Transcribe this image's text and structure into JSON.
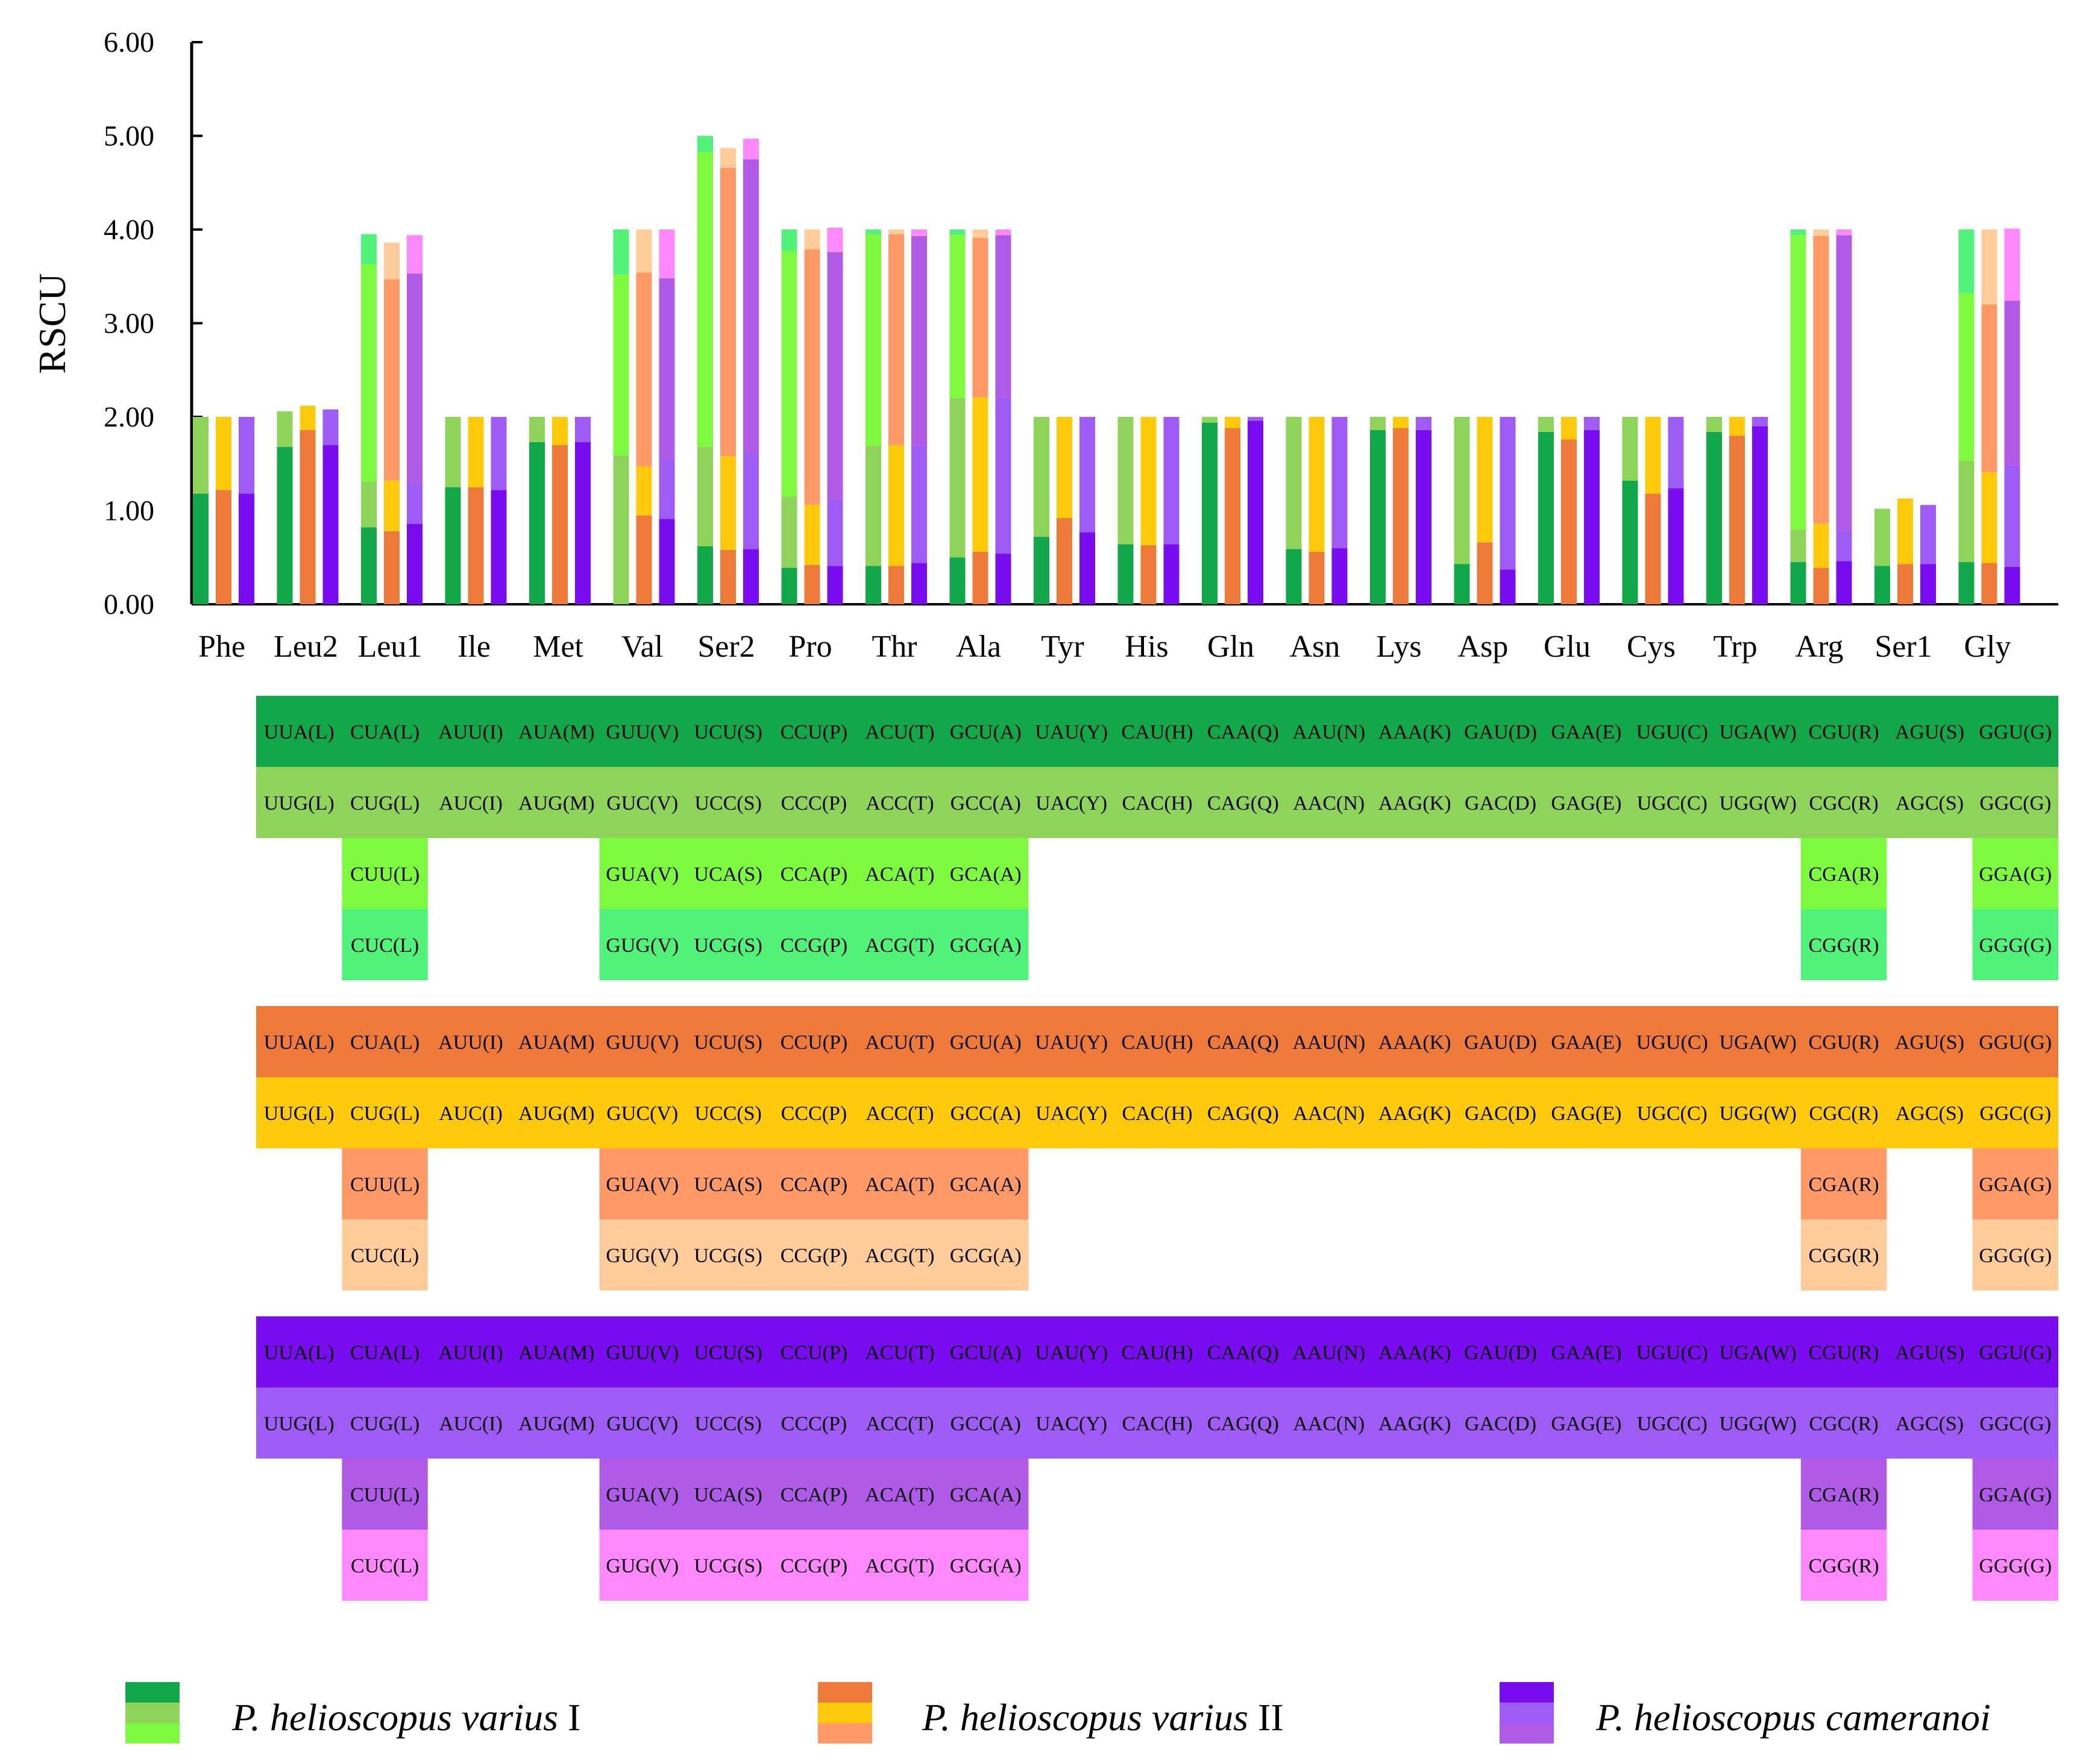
{
  "chart_data": {
    "type": "bar",
    "stacked": true,
    "ylabel": "RSCU",
    "ylim": [
      0,
      6
    ],
    "yticks": [
      "0.00",
      "1.00",
      "2.00",
      "3.00",
      "4.00",
      "5.00",
      "6.00"
    ],
    "categories": [
      "Phe",
      "Leu2",
      "Leu1",
      "Ile",
      "Met",
      "Val",
      "Ser2",
      "Pro",
      "Thr",
      "Ala",
      "Tyr",
      "His",
      "Gln",
      "Asn",
      "Lys",
      "Asp",
      "Glu",
      "Cys",
      "Trp",
      "Arg",
      "Ser1",
      "Gly"
    ],
    "series": [
      {
        "name": "P. helioscopus varius I",
        "colors": [
          "#12a84a",
          "#8ed35a",
          "#7dfa3e",
          "#50f27a"
        ],
        "stacks": [
          [
            1.18,
            0.82
          ],
          [
            1.68,
            0.38
          ],
          [
            0.82,
            0.49,
            2.32,
            0.32
          ],
          [
            1.25,
            0.75
          ],
          [
            1.73,
            0.27
          ],
          [
            0.0,
            1.59,
            1.93,
            0.48
          ],
          [
            0.62,
            1.06,
            3.15,
            0.17
          ],
          [
            0.39,
            0.76,
            2.62,
            0.23
          ],
          [
            0.41,
            1.28,
            2.26,
            0.05
          ],
          [
            0.5,
            1.7,
            1.74,
            0.06
          ],
          [
            0.72,
            1.28
          ],
          [
            0.64,
            1.36
          ],
          [
            1.94,
            0.06
          ],
          [
            0.59,
            1.41
          ],
          [
            1.86,
            0.14
          ],
          [
            0.43,
            1.57
          ],
          [
            1.84,
            0.16
          ],
          [
            1.32,
            0.68
          ],
          [
            1.84,
            0.16
          ],
          [
            0.45,
            0.35,
            3.14,
            0.06
          ],
          [
            0.41,
            0.61
          ],
          [
            0.45,
            1.08,
            1.79,
            0.68
          ]
        ]
      },
      {
        "name": "P. helioscopus varius II",
        "colors": [
          "#ee7a3a",
          "#ffca0a",
          "#ff9a66",
          "#ffcc99"
        ],
        "stacks": [
          [
            1.22,
            0.78
          ],
          [
            1.86,
            0.26
          ],
          [
            0.78,
            0.54,
            2.15,
            0.39
          ],
          [
            1.25,
            0.75
          ],
          [
            1.7,
            0.3
          ],
          [
            0.95,
            0.52,
            2.07,
            0.46
          ],
          [
            0.58,
            1.0,
            3.08,
            0.21
          ],
          [
            0.42,
            0.64,
            2.73,
            0.21
          ],
          [
            0.41,
            1.29,
            2.25,
            0.05
          ],
          [
            0.56,
            1.65,
            1.7,
            0.09
          ],
          [
            0.92,
            1.08
          ],
          [
            0.63,
            1.37
          ],
          [
            1.88,
            0.12
          ],
          [
            0.56,
            1.44
          ],
          [
            1.88,
            0.12
          ],
          [
            0.66,
            1.34
          ],
          [
            1.76,
            0.24
          ],
          [
            1.18,
            0.82
          ],
          [
            1.8,
            0.2
          ],
          [
            0.39,
            0.47,
            3.07,
            0.07
          ],
          [
            0.43,
            0.7
          ],
          [
            0.44,
            0.97,
            1.79,
            0.8
          ]
        ]
      },
      {
        "name": "P. helioscopus cameranoi",
        "colors": [
          "#7a0df0",
          "#9e5cf5",
          "#b05ae8",
          "#ff88ff"
        ],
        "stacks": [
          [
            1.18,
            0.82
          ],
          [
            1.7,
            0.38
          ],
          [
            0.86,
            0.43,
            2.24,
            0.41
          ],
          [
            1.22,
            0.78
          ],
          [
            1.73,
            0.27
          ],
          [
            0.91,
            0.64,
            1.93,
            0.52
          ],
          [
            0.59,
            1.03,
            3.13,
            0.22
          ],
          [
            0.41,
            0.71,
            2.64,
            0.26
          ],
          [
            0.44,
            1.25,
            2.24,
            0.07
          ],
          [
            0.54,
            1.66,
            1.74,
            0.06
          ],
          [
            0.77,
            1.23
          ],
          [
            0.64,
            1.36
          ],
          [
            1.96,
            0.04
          ],
          [
            0.6,
            1.4
          ],
          [
            1.86,
            0.14
          ],
          [
            0.37,
            1.63
          ],
          [
            1.86,
            0.14
          ],
          [
            1.24,
            0.76
          ],
          [
            1.9,
            0.1
          ],
          [
            0.46,
            0.33,
            3.15,
            0.06
          ],
          [
            0.43,
            0.63
          ],
          [
            0.4,
            1.08,
            1.76,
            0.77
          ]
        ]
      }
    ]
  },
  "codon_table": {
    "row1": [
      "UUA(L)",
      "CUA(L)",
      "AUU(I)",
      "AUA(M)",
      "GUU(V)",
      "UCU(S)",
      "CCU(P)",
      "ACU(T)",
      "GCU(A)",
      "UAU(Y)",
      "CAU(H)",
      "CAA(Q)",
      "AAU(N)",
      "AAA(K)",
      "GAU(D)",
      "GAA(E)",
      "UGU(C)",
      "UGA(W)",
      "CGU(R)",
      "AGU(S)",
      "GGU(G)"
    ],
    "row2": [
      "UUG(L)",
      "CUG(L)",
      "AUC(I)",
      "AUG(M)",
      "GUC(V)",
      "UCC(S)",
      "CCC(P)",
      "ACC(T)",
      "GCC(A)",
      "UAC(Y)",
      "CAC(H)",
      "CAG(Q)",
      "AAC(N)",
      "AAG(K)",
      "GAC(D)",
      "GAG(E)",
      "UGC(C)",
      "UGG(W)",
      "CGC(R)",
      "AGC(S)",
      "GGC(G)"
    ],
    "row3_leu": "CUU(L)",
    "row3_mid": [
      "GUA(V)",
      "UCA(S)",
      "CCA(P)",
      "ACA(T)",
      "GCA(A)"
    ],
    "row3_arg": "CGA(R)",
    "row3_gly": "GGA(G)",
    "row4_leu": "CUC(L)",
    "row4_mid": [
      "GUG(V)",
      "UCG(S)",
      "CCG(P)",
      "ACG(T)",
      "GCG(A)"
    ],
    "row4_arg": "CGG(R)",
    "row4_gly": "GGG(G)"
  },
  "legend": [
    {
      "italic": "P. helioscopus varius",
      "suffix": " I"
    },
    {
      "italic": "P. helioscopus varius",
      "suffix": " II"
    },
    {
      "italic": "P. helioscopus cameranoi",
      "suffix": ""
    }
  ]
}
